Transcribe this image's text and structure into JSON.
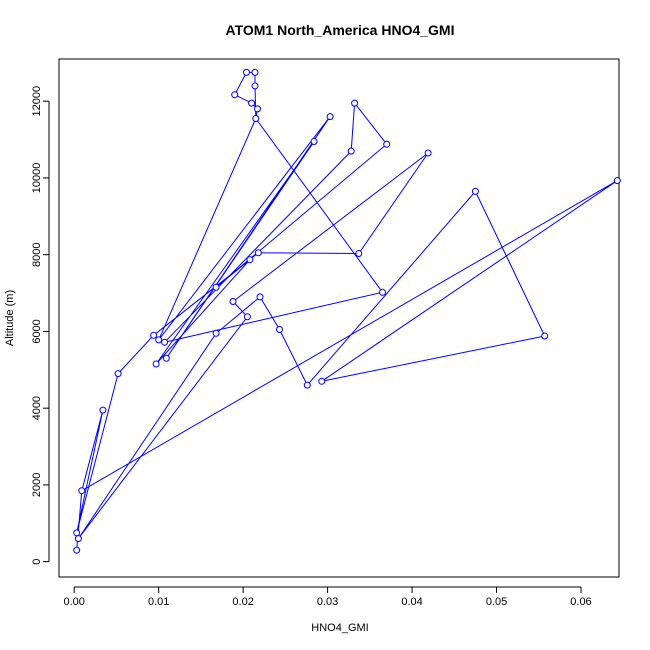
{
  "chart_data": {
    "type": "line",
    "title": "ATOM1 North_America HNO4_GMI",
    "xlabel": "HNO4_GMI",
    "ylabel": "Altitude (m)",
    "xlim": [
      -0.0018,
      0.0645
    ],
    "ylim": [
      -400,
      13100
    ],
    "x_ticks": [
      0.0,
      0.01,
      0.02,
      0.03,
      0.04,
      0.05,
      0.06
    ],
    "x_tick_labels": [
      "0.00",
      "0.01",
      "0.02",
      "0.03",
      "0.04",
      "0.05",
      "0.06"
    ],
    "y_ticks": [
      0,
      2000,
      4000,
      6000,
      8000,
      10000,
      12000
    ],
    "y_tick_labels": [
      "0",
      "2000",
      "4000",
      "6000",
      "8000",
      "10000",
      "12000"
    ],
    "series": [
      {
        "color": "#0000ff",
        "marker": "open-circle",
        "points": [
          [
            0.0003,
            300
          ],
          [
            0.0003,
            750
          ],
          [
            0.0005,
            600
          ],
          [
            0.0009,
            1850
          ],
          [
            0.0034,
            3950
          ],
          [
            0.0052,
            4900
          ],
          [
            0.0094,
            5900
          ],
          [
            0.0097,
            5150
          ],
          [
            0.0109,
            5300
          ],
          [
            0.01,
            5780
          ],
          [
            0.0107,
            5720
          ],
          [
            0.0168,
            7150
          ],
          [
            0.0168,
            5950
          ],
          [
            0.0188,
            6780
          ],
          [
            0.0205,
            6380
          ],
          [
            0.0208,
            7870
          ],
          [
            0.0218,
            8050
          ],
          [
            0.022,
            6900
          ],
          [
            0.0243,
            6050
          ],
          [
            0.0276,
            4600
          ],
          [
            0.0293,
            4700
          ],
          [
            0.0337,
            8030
          ],
          [
            0.0365,
            7020
          ],
          [
            0.0284,
            10950
          ],
          [
            0.0303,
            11600
          ],
          [
            0.0328,
            10700
          ],
          [
            0.0332,
            11950
          ],
          [
            0.037,
            10880
          ],
          [
            0.0419,
            10650
          ],
          [
            0.0475,
            9650
          ],
          [
            0.0557,
            5880
          ],
          [
            0.0643,
            9930
          ],
          [
            0.019,
            12170
          ],
          [
            0.0204,
            12750
          ],
          [
            0.0214,
            12750
          ],
          [
            0.0214,
            12400
          ],
          [
            0.021,
            11950
          ],
          [
            0.0217,
            11800
          ],
          [
            0.0215,
            11550
          ]
        ],
        "path": [
          [
            0.0003,
            300
          ],
          [
            0.0009,
            1850
          ],
          [
            0.0034,
            3950
          ],
          [
            0.0003,
            750
          ],
          [
            0.0052,
            4900
          ],
          [
            0.0094,
            5900
          ],
          [
            0.0208,
            7870
          ],
          [
            0.0097,
            5150
          ],
          [
            0.0284,
            10950
          ],
          [
            0.0109,
            5300
          ],
          [
            0.0303,
            11600
          ],
          [
            0.01,
            5780
          ],
          [
            0.0215,
            11550
          ],
          [
            0.0217,
            11800
          ],
          [
            0.021,
            11950
          ],
          [
            0.019,
            12170
          ],
          [
            0.0204,
            12750
          ],
          [
            0.0214,
            12750
          ],
          [
            0.0214,
            12400
          ],
          [
            0.0215,
            11550
          ],
          [
            0.0365,
            7020
          ],
          [
            0.0107,
            5720
          ],
          [
            0.0328,
            10700
          ],
          [
            0.0332,
            11950
          ],
          [
            0.037,
            10880
          ],
          [
            0.0168,
            7150
          ],
          [
            0.0218,
            8050
          ],
          [
            0.0337,
            8030
          ],
          [
            0.0419,
            10650
          ],
          [
            0.0188,
            6780
          ],
          [
            0.0205,
            6380
          ],
          [
            0.0005,
            600
          ],
          [
            0.0168,
            5950
          ],
          [
            0.022,
            6900
          ],
          [
            0.0243,
            6050
          ],
          [
            0.0276,
            4600
          ],
          [
            0.0475,
            9650
          ],
          [
            0.0557,
            5880
          ],
          [
            0.0293,
            4700
          ],
          [
            0.0643,
            9930
          ],
          [
            0.0009,
            1850
          ]
        ]
      }
    ],
    "grid": false,
    "legend": "none"
  }
}
